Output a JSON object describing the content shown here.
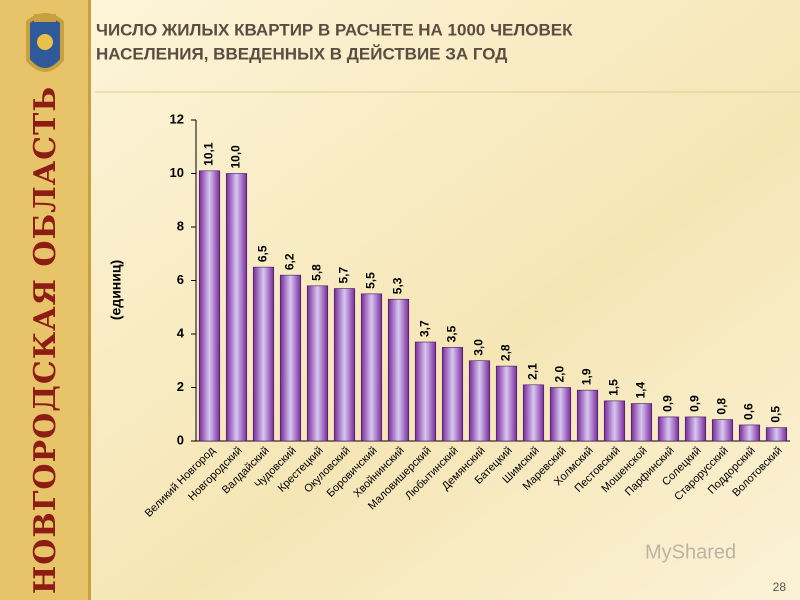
{
  "chart_data": {
    "type": "bar",
    "title": [
      "ЧИСЛО ЖИЛЫХ КВАРТИР В  РАСЧЕТЕ НА 1000 ЧЕЛОВЕК",
      "НАСЕЛЕНИЯ, ВВЕДЕННЫХ В ДЕЙСТВИЕ ЗА ГОД"
    ],
    "y_label": "(единиц)",
    "categories": [
      "Великий Новгород",
      "Новгородский",
      "Валдайский",
      "Чудовский",
      "Крестецкий",
      "Окуловский",
      "Боровичский",
      "Хвойнинский",
      "Маловишерский",
      "Любытинский",
      "Демянский",
      "Батецкий",
      "Шимский",
      "Маревский",
      "Холмский",
      "Пестовский",
      "Мошенской",
      "Парфинский",
      "Солецкий",
      "Старорусский",
      "Поддорский",
      "Волотовский"
    ],
    "values": [
      10.1,
      10.0,
      6.5,
      6.2,
      5.8,
      5.7,
      5.5,
      5.3,
      3.7,
      3.5,
      3.0,
      2.8,
      2.1,
      2.0,
      1.9,
      1.5,
      1.4,
      0.9,
      0.9,
      0.8,
      0.6,
      0.5
    ],
    "value_labels": [
      "10,1",
      "10,0",
      "6,5",
      "6,2",
      "5,8",
      "5,7",
      "5,5",
      "5,3",
      "3,7",
      "3,5",
      "3,0",
      "2,8",
      "2,1",
      "2,0",
      "1,9",
      "1,5",
      "1,4",
      "0,9",
      "0,9",
      "0,8",
      "0,6",
      "0,5"
    ],
    "color": "#7a2a9c",
    "ylim": [
      0,
      12
    ],
    "yticks": [
      0,
      2,
      4,
      6,
      8,
      10,
      12
    ],
    "grid": false
  },
  "slide": {
    "side_title": "НОВГОРОДСКАЯ ОБЛАСТЬ",
    "watermark": "MyShared",
    "page_number": "28"
  }
}
